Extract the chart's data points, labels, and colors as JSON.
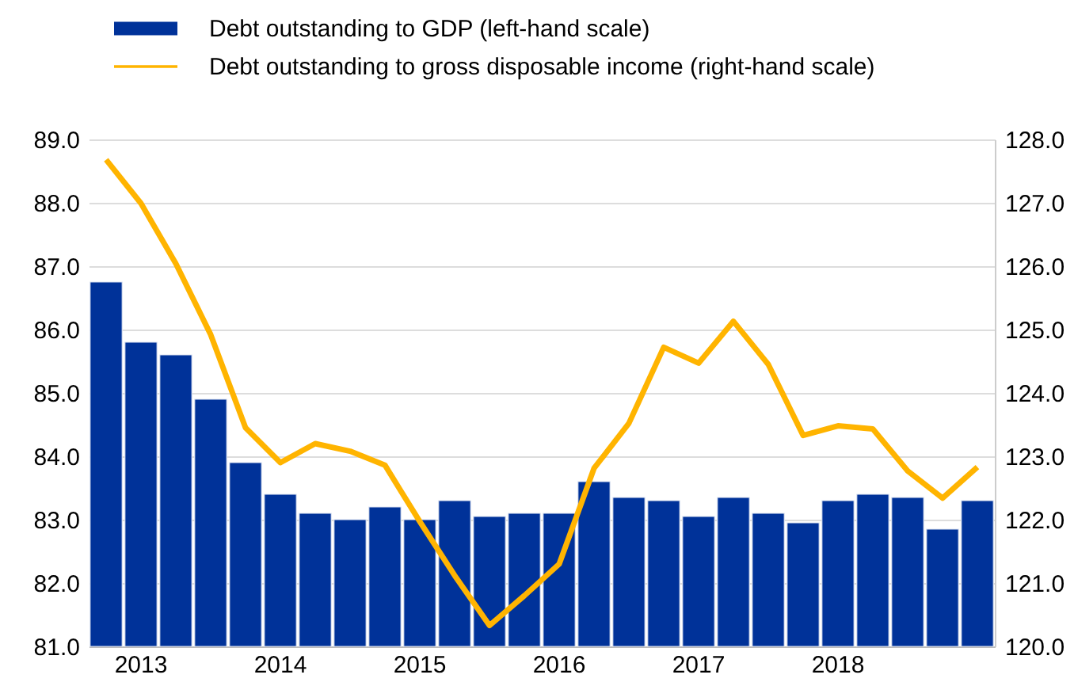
{
  "chart_data": {
    "type": "bar",
    "categories": [
      null,
      "2013",
      null,
      null,
      null,
      "2014",
      null,
      null,
      null,
      "2015",
      null,
      null,
      null,
      "2016",
      null,
      null,
      null,
      "2017",
      null,
      null,
      null,
      "2018",
      null,
      null,
      null,
      null
    ],
    "series": [
      {
        "name": "Debt outstanding to GDP (left-hand scale)",
        "color": "#003299",
        "values": [
          86.75,
          85.8,
          85.6,
          84.9,
          83.9,
          83.4,
          83.1,
          83.0,
          83.2,
          83.0,
          83.3,
          83.05,
          83.1,
          83.1,
          83.6,
          83.35,
          83.3,
          83.05,
          83.35,
          83.1,
          82.95,
          83.3,
          83.4,
          83.35,
          82.85,
          83.3
        ]
      },
      {
        "name": "Debt outstanding to gross disposable income (right-hand scale)",
        "type": "line",
        "axis": "y2",
        "color": "#ffb400",
        "values": [
          127.68,
          126.99,
          126.04,
          124.92,
          123.45,
          122.9,
          123.2,
          123.08,
          122.86,
          121.97,
          121.12,
          120.33,
          120.8,
          121.3,
          122.81,
          123.52,
          124.72,
          124.47,
          125.13,
          124.45,
          123.33,
          123.48,
          123.43,
          122.77,
          122.34,
          122.83
        ]
      }
    ],
    "ylim": [
      81,
      89
    ],
    "yticks": [
      {
        "value": 81,
        "label": "81.0"
      },
      {
        "value": 82,
        "label": "82.0"
      },
      {
        "value": 83,
        "label": "83.0"
      },
      {
        "value": 84,
        "label": "84.0"
      },
      {
        "value": 85,
        "label": "85.0"
      },
      {
        "value": 86,
        "label": "86.0"
      },
      {
        "value": 87,
        "label": "87.0"
      },
      {
        "value": 88,
        "label": "88.0"
      },
      {
        "value": 89,
        "label": "89.0"
      }
    ],
    "y2lim": [
      120,
      128
    ],
    "y2ticks": [
      {
        "value": 120,
        "label": "120.0"
      },
      {
        "value": 121,
        "label": "121.0"
      },
      {
        "value": 122,
        "label": "122.0"
      },
      {
        "value": 123,
        "label": "123.0"
      },
      {
        "value": 124,
        "label": "124.0"
      },
      {
        "value": 125,
        "label": "125.0"
      },
      {
        "value": 126,
        "label": "126.0"
      },
      {
        "value": 127,
        "label": "127.0"
      },
      {
        "value": 128,
        "label": "128.0"
      }
    ],
    "grid": "y",
    "legend": "top"
  }
}
